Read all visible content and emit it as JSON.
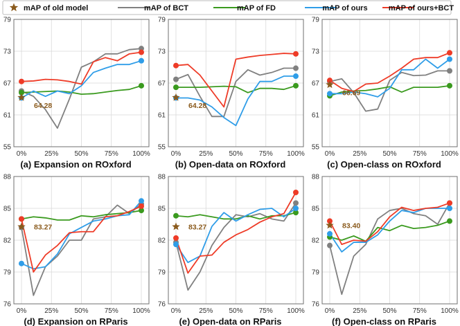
{
  "legend": {
    "items": [
      {
        "label": "mAP of old model",
        "color": "#8a5a1c",
        "marker": "star"
      },
      {
        "label": "mAP of BCT",
        "color": "#808080",
        "marker": "line"
      },
      {
        "label": "mAP of FD",
        "color": "#3a9a1e",
        "marker": "line"
      },
      {
        "label": "mAP of ours",
        "color": "#2f9de8",
        "marker": "line"
      },
      {
        "label": "mAP of ours+BCT",
        "color": "#ee3b27",
        "marker": "line"
      }
    ]
  },
  "chart_data": [
    {
      "type": "line",
      "title": "(a) Expansion on ROxford",
      "categories": [
        "0%",
        "25%",
        "50%",
        "75%",
        "100%"
      ],
      "x": [
        0,
        10,
        20,
        30,
        40,
        50,
        60,
        70,
        80,
        90,
        100
      ],
      "ylim": [
        55,
        79
      ],
      "yticks": [
        55,
        61,
        67,
        73,
        79
      ],
      "old_model": {
        "value": 64.28,
        "label": "64.28"
      },
      "series": [
        {
          "name": "mAP of BCT",
          "color": "#808080",
          "values": [
            65.5,
            64.5,
            62.0,
            58.5,
            64.0,
            70.0,
            71.0,
            72.5,
            72.5,
            73.3,
            73.5
          ]
        },
        {
          "name": "mAP of FD",
          "color": "#3a9a1e",
          "values": [
            65.2,
            65.3,
            65.4,
            65.5,
            65.3,
            64.9,
            65.0,
            65.3,
            65.6,
            65.8,
            66.5
          ]
        },
        {
          "name": "mAP of ours",
          "color": "#2f9de8",
          "values": [
            64.2,
            65.5,
            64.5,
            65.5,
            65.0,
            66.5,
            69.0,
            69.8,
            70.5,
            70.5,
            71.2
          ]
        },
        {
          "name": "mAP of ours+BCT",
          "color": "#ee3b27",
          "values": [
            67.3,
            67.4,
            67.7,
            67.6,
            67.3,
            66.8,
            71.0,
            71.8,
            71.2,
            72.5,
            72.8
          ]
        }
      ]
    },
    {
      "type": "line",
      "title": "(b) Open-data on ROxford",
      "categories": [
        "0%",
        "25%",
        "50%",
        "75%",
        "100%"
      ],
      "x": [
        0,
        10,
        20,
        30,
        40,
        50,
        60,
        70,
        80,
        90,
        100
      ],
      "ylim": [
        55,
        79
      ],
      "yticks": [
        55,
        61,
        67,
        73,
        79
      ],
      "old_model": {
        "value": 64.28,
        "label": "64.28"
      },
      "series": [
        {
          "name": "mAP of BCT",
          "color": "#808080",
          "values": [
            67.7,
            68.6,
            64.5,
            60.7,
            60.7,
            67.3,
            69.5,
            68.5,
            69.0,
            69.8,
            69.8
          ]
        },
        {
          "name": "mAP of FD",
          "color": "#3a9a1e",
          "values": [
            66.2,
            66.2,
            66.2,
            66.3,
            66.4,
            66.3,
            65.2,
            66.0,
            66.0,
            65.8,
            66.5
          ]
        },
        {
          "name": "mAP of ours",
          "color": "#2f9de8",
          "values": [
            64.2,
            64.2,
            63.8,
            62.5,
            60.5,
            59.0,
            64.0,
            67.3,
            67.3,
            68.3,
            68.3
          ]
        },
        {
          "name": "mAP of ours+BCT",
          "color": "#ee3b27",
          "values": [
            70.3,
            70.5,
            68.5,
            65.5,
            62.5,
            71.5,
            71.9,
            72.2,
            72.4,
            72.6,
            72.5
          ]
        }
      ]
    },
    {
      "type": "line",
      "title": "(c) Open-class on ROxford",
      "categories": [
        "0%",
        "25%",
        "50%",
        "75%",
        "100%"
      ],
      "x": [
        0,
        10,
        20,
        30,
        40,
        50,
        60,
        70,
        80,
        90,
        100
      ],
      "ylim": [
        55,
        79
      ],
      "yticks": [
        55,
        61,
        67,
        73,
        79
      ],
      "old_model": {
        "value": 66.69,
        "label": "66.69"
      },
      "series": [
        {
          "name": "mAP of BCT",
          "color": "#808080",
          "values": [
            67.3,
            67.8,
            65.2,
            61.7,
            62.1,
            67.5,
            69.0,
            68.4,
            68.5,
            69.3,
            69.3
          ]
        },
        {
          "name": "mAP of FD",
          "color": "#3a9a1e",
          "values": [
            64.6,
            65.3,
            65.5,
            65.6,
            65.9,
            66.3,
            65.3,
            66.2,
            66.2,
            66.2,
            66.5
          ]
        },
        {
          "name": "mAP of ours",
          "color": "#2f9de8",
          "values": [
            65.0,
            65.0,
            65.3,
            65.0,
            64.4,
            66.0,
            69.5,
            69.5,
            71.5,
            69.8,
            71.5
          ]
        },
        {
          "name": "mAP of ours+BCT",
          "color": "#ee3b27",
          "values": [
            67.5,
            66.0,
            65.4,
            66.8,
            67.0,
            68.3,
            69.8,
            71.5,
            71.8,
            71.8,
            72.7
          ]
        }
      ]
    },
    {
      "type": "line",
      "title": "(d) Expansion on RParis",
      "categories": [
        "0%",
        "25%",
        "50%",
        "75%",
        "100%"
      ],
      "x": [
        0,
        10,
        20,
        30,
        40,
        50,
        60,
        70,
        80,
        90,
        100
      ],
      "ylim": [
        76,
        88
      ],
      "yticks": [
        76,
        79,
        82,
        85,
        88
      ],
      "old_model": {
        "value": 83.27,
        "label": "83.27"
      },
      "series": [
        {
          "name": "mAP of BCT",
          "color": "#808080",
          "values": [
            83.2,
            76.8,
            79.5,
            80.5,
            82.0,
            82.0,
            84.0,
            84.2,
            85.3,
            84.5,
            85.4
          ]
        },
        {
          "name": "mAP of FD",
          "color": "#3a9a1e",
          "values": [
            84.0,
            84.2,
            84.1,
            83.9,
            83.9,
            84.3,
            84.2,
            84.4,
            84.5,
            84.6,
            84.8
          ]
        },
        {
          "name": "mAP of ours",
          "color": "#2f9de8",
          "values": [
            79.8,
            79.3,
            79.5,
            80.7,
            82.6,
            83.2,
            83.8,
            84.0,
            84.3,
            84.4,
            85.7
          ]
        },
        {
          "name": "mAP of ours+BCT",
          "color": "#ee3b27",
          "values": [
            84.0,
            79.0,
            80.6,
            81.5,
            82.7,
            82.8,
            82.8,
            84.2,
            84.3,
            84.7,
            85.2
          ]
        }
      ]
    },
    {
      "type": "line",
      "title": "(e) Open-data on RParis",
      "categories": [
        "0%",
        "25%",
        "50%",
        "75%",
        "100%"
      ],
      "x": [
        0,
        10,
        20,
        30,
        40,
        50,
        60,
        70,
        80,
        90,
        100
      ],
      "ylim": [
        76,
        88
      ],
      "yticks": [
        76,
        79,
        82,
        85,
        88
      ],
      "old_model": {
        "value": 83.27,
        "label": "83.27"
      },
      "series": [
        {
          "name": "mAP of BCT",
          "color": "#808080",
          "values": [
            81.8,
            77.3,
            79.0,
            81.5,
            83.2,
            84.4,
            84.2,
            84.5,
            84.0,
            83.8,
            85.5
          ]
        },
        {
          "name": "mAP of FD",
          "color": "#3a9a1e",
          "values": [
            84.3,
            84.2,
            84.4,
            84.2,
            84.0,
            84.0,
            84.3,
            84.0,
            84.3,
            84.3,
            84.6
          ]
        },
        {
          "name": "mAP of ours",
          "color": "#2f9de8",
          "values": [
            81.6,
            79.9,
            80.5,
            83.3,
            84.6,
            83.8,
            84.4,
            84.9,
            85.0,
            84.2,
            85.0
          ]
        },
        {
          "name": "mAP of ours+BCT",
          "color": "#ee3b27",
          "values": [
            82.2,
            78.9,
            80.5,
            80.6,
            81.8,
            82.5,
            83.0,
            83.7,
            84.2,
            84.5,
            86.5
          ]
        }
      ]
    },
    {
      "type": "line",
      "title": "(f) Open-class on RParis",
      "categories": [
        "0%",
        "25%",
        "50%",
        "75%",
        "100%"
      ],
      "x": [
        0,
        10,
        20,
        30,
        40,
        50,
        60,
        70,
        80,
        90,
        100
      ],
      "ylim": [
        76,
        88
      ],
      "yticks": [
        76,
        79,
        82,
        85,
        88
      ],
      "old_model": {
        "value": 83.4,
        "label": "83.40"
      },
      "series": [
        {
          "name": "mAP of BCT",
          "color": "#808080",
          "values": [
            81.5,
            76.9,
            80.5,
            81.6,
            84.0,
            84.8,
            85.0,
            84.5,
            84.3,
            83.5,
            85.5
          ]
        },
        {
          "name": "mAP of FD",
          "color": "#3a9a1e",
          "values": [
            82.3,
            82.0,
            82.4,
            81.9,
            83.2,
            82.9,
            83.4,
            83.1,
            83.2,
            83.4,
            83.8
          ]
        },
        {
          "name": "mAP of ours",
          "color": "#2f9de8",
          "values": [
            82.6,
            80.9,
            81.8,
            81.8,
            82.5,
            83.8,
            84.8,
            84.6,
            85.0,
            85.0,
            85.0
          ]
        },
        {
          "name": "mAP of ours+BCT",
          "color": "#ee3b27",
          "values": [
            83.8,
            81.6,
            82.0,
            81.9,
            82.8,
            84.2,
            85.1,
            84.8,
            85.0,
            85.1,
            85.5
          ]
        }
      ]
    }
  ]
}
